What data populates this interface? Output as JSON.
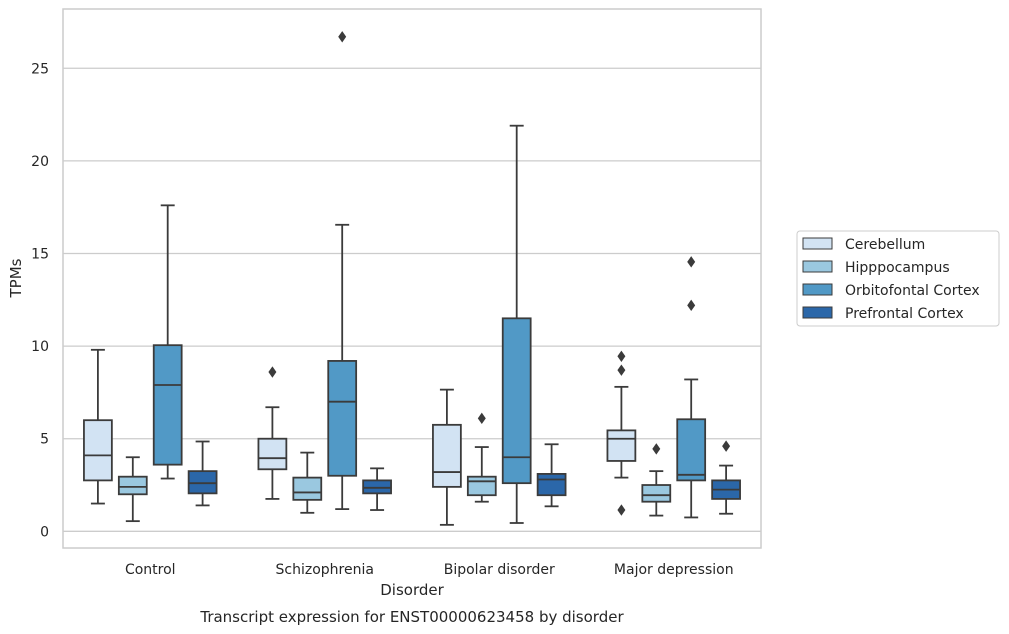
{
  "chart_data": {
    "type": "box",
    "xlabel": "Disorder",
    "ylabel": "TPMs",
    "caption": "Transcript expression for ENST00000623458 by disorder",
    "ylim": [
      -0.9,
      28.2
    ],
    "yticks": [
      0,
      5,
      10,
      15,
      20,
      25
    ],
    "grid": "horizontal",
    "legend_position": "right",
    "categories": [
      "Control",
      "Schizophrenia",
      "Bipolar disorder",
      "Major depression"
    ],
    "series": [
      {
        "name": "Cerebellum",
        "color": "#d2e3f3",
        "boxes": [
          {
            "whislo": 1.5,
            "q1": 2.75,
            "med": 4.1,
            "q3": 6.0,
            "whishi": 9.8,
            "fliers": []
          },
          {
            "whislo": 1.75,
            "q1": 3.35,
            "med": 3.95,
            "q3": 5.0,
            "whishi": 6.7,
            "fliers": [
              8.6
            ]
          },
          {
            "whislo": 0.35,
            "q1": 2.4,
            "med": 3.2,
            "q3": 5.75,
            "whishi": 7.65,
            "fliers": []
          },
          {
            "whislo": 2.9,
            "q1": 3.8,
            "med": 5.0,
            "q3": 5.45,
            "whishi": 7.8,
            "fliers": [
              1.15,
              8.7,
              9.45
            ]
          }
        ]
      },
      {
        "name": "Hipppocampus",
        "color": "#9ac8e0",
        "boxes": [
          {
            "whislo": 0.55,
            "q1": 2.0,
            "med": 2.4,
            "q3": 2.95,
            "whishi": 4.0,
            "fliers": []
          },
          {
            "whislo": 1.0,
            "q1": 1.7,
            "med": 2.1,
            "q3": 2.9,
            "whishi": 4.25,
            "fliers": []
          },
          {
            "whislo": 1.6,
            "q1": 1.95,
            "med": 2.7,
            "q3": 2.95,
            "whishi": 4.55,
            "fliers": [
              6.1
            ]
          },
          {
            "whislo": 0.85,
            "q1": 1.6,
            "med": 1.95,
            "q3": 2.5,
            "whishi": 3.25,
            "fliers": [
              4.45
            ]
          }
        ]
      },
      {
        "name": "Orbitofontal Cortex",
        "color": "#5199c6",
        "boxes": [
          {
            "whislo": 2.85,
            "q1": 3.6,
            "med": 7.9,
            "q3": 10.05,
            "whishi": 17.6,
            "fliers": []
          },
          {
            "whislo": 1.2,
            "q1": 3.0,
            "med": 7.0,
            "q3": 9.2,
            "whishi": 16.55,
            "fliers": [
              26.7
            ]
          },
          {
            "whislo": 0.45,
            "q1": 2.6,
            "med": 4.0,
            "q3": 11.5,
            "whishi": 21.9,
            "fliers": []
          },
          {
            "whislo": 0.75,
            "q1": 2.75,
            "med": 3.05,
            "q3": 6.05,
            "whishi": 8.2,
            "fliers": [
              12.2,
              14.55
            ]
          }
        ]
      },
      {
        "name": "Prefrontal Cortex",
        "color": "#2b67a9",
        "boxes": [
          {
            "whislo": 1.4,
            "q1": 2.05,
            "med": 2.6,
            "q3": 3.25,
            "whishi": 4.85,
            "fliers": []
          },
          {
            "whislo": 1.15,
            "q1": 2.05,
            "med": 2.35,
            "q3": 2.75,
            "whishi": 3.4,
            "fliers": []
          },
          {
            "whislo": 1.35,
            "q1": 1.95,
            "med": 2.8,
            "q3": 3.1,
            "whishi": 4.7,
            "fliers": []
          },
          {
            "whislo": 0.95,
            "q1": 1.75,
            "med": 2.25,
            "q3": 2.75,
            "whishi": 3.55,
            "fliers": [
              4.6
            ]
          }
        ]
      }
    ]
  }
}
